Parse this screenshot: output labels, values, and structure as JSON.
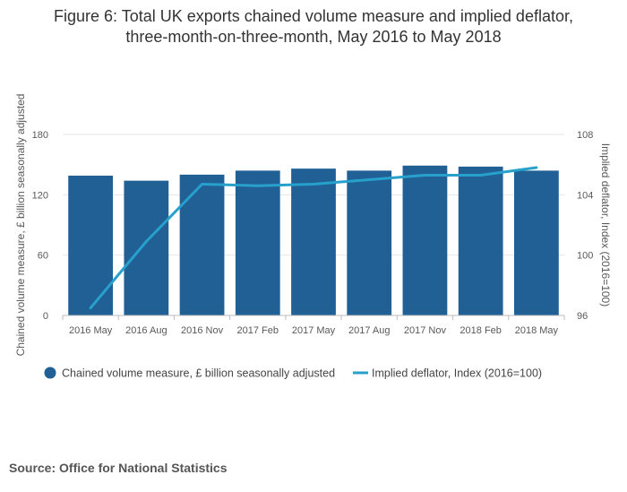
{
  "chart_data": {
    "type": "bar",
    "title_lines": [
      "Figure 6: Total UK exports chained volume measure and implied deflator,",
      "three-month-on-three-month, May 2016 to May 2018"
    ],
    "categories": [
      "2016 May",
      "2016 Aug",
      "2016 Nov",
      "2017 Feb",
      "2017 May",
      "2017 Aug",
      "2017 Nov",
      "2018 Feb",
      "2018 May"
    ],
    "series": [
      {
        "name": "Chained volume measure, £ billion seasonally adjusted",
        "type": "bar",
        "axis": "left",
        "color": "#206095",
        "values": [
          139,
          134,
          140,
          144,
          146,
          144,
          149,
          148,
          144
        ]
      },
      {
        "name": "Implied deflator, Index (2016=100)",
        "type": "line",
        "axis": "right",
        "color": "#27a0cc",
        "values": [
          96.5,
          100.9,
          104.7,
          104.6,
          104.7,
          105.0,
          105.3,
          105.3,
          105.8
        ]
      }
    ],
    "ylabel_left": "Chained volume measure, £ billion seasonally adjusted",
    "ylabel_right": "Implied deflator, Index (2016=100)",
    "ylim_left": [
      0,
      180
    ],
    "yticks_left": [
      0,
      60,
      120,
      180
    ],
    "ylim_right": [
      96,
      108
    ],
    "yticks_right": [
      96,
      100,
      104,
      108
    ],
    "grid": true,
    "legend_position": "bottom",
    "source": "Source: Office for National Statistics"
  }
}
